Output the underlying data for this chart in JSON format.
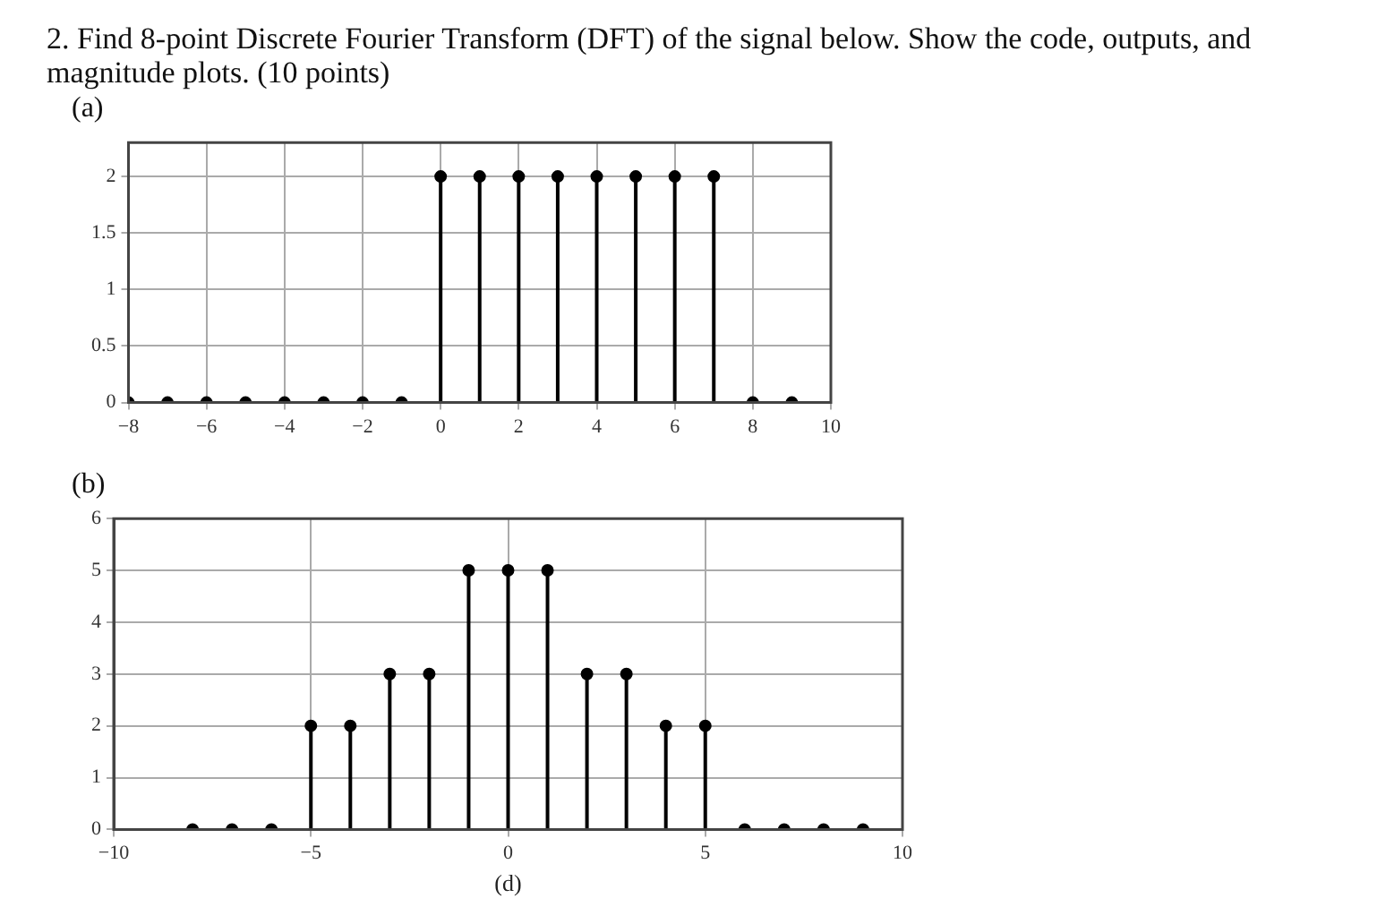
{
  "chart_data": [
    {
      "type": "lollipop",
      "title": "2. Find 8-point Discrete Fourier Transform (DFT) of the signal below. Show the code, outputs, and magnitude plots. (10 points)",
      "subtitle": "(a)",
      "x": [
        -8,
        -7,
        -6,
        -5,
        -4,
        -3,
        -2,
        -1,
        0,
        1,
        2,
        3,
        4,
        5,
        6,
        7,
        8,
        9
      ],
      "series": [
        {
          "color": "#000000",
          "values": [
            0,
            0,
            0,
            0,
            0,
            0,
            0,
            0,
            2,
            2,
            2,
            2,
            2,
            2,
            2,
            2,
            0,
            0
          ]
        }
      ],
      "xlim": [
        -8,
        10
      ],
      "xticks": [
        -8,
        -6,
        -4,
        -2,
        0,
        2,
        4,
        6,
        8,
        10
      ],
      "ylim": [
        0,
        2.3
      ],
      "yticks": [
        0,
        0.5,
        1,
        1.5,
        2
      ],
      "grid": true,
      "marker": "circle",
      "legend": false
    },
    {
      "type": "lollipop",
      "subtitle": "(b)",
      "xlabel": "(d)",
      "x": [
        -8,
        -7,
        -6,
        -5,
        -4,
        -3,
        -2,
        -1,
        0,
        1,
        2,
        3,
        4,
        5,
        6,
        7,
        8,
        9
      ],
      "series": [
        {
          "color": "#000000",
          "values": [
            0,
            0,
            0,
            2,
            2,
            3,
            3,
            5,
            5,
            5,
            3,
            3,
            2,
            2,
            0,
            0,
            0,
            0
          ]
        }
      ],
      "xlim": [
        -10,
        10
      ],
      "xticks": [
        -10,
        -5,
        0,
        5,
        10
      ],
      "ylim": [
        0,
        6
      ],
      "yticks": [
        0,
        1,
        2,
        3,
        4,
        5,
        6
      ],
      "grid": true,
      "marker": "circle",
      "legend": false
    }
  ]
}
